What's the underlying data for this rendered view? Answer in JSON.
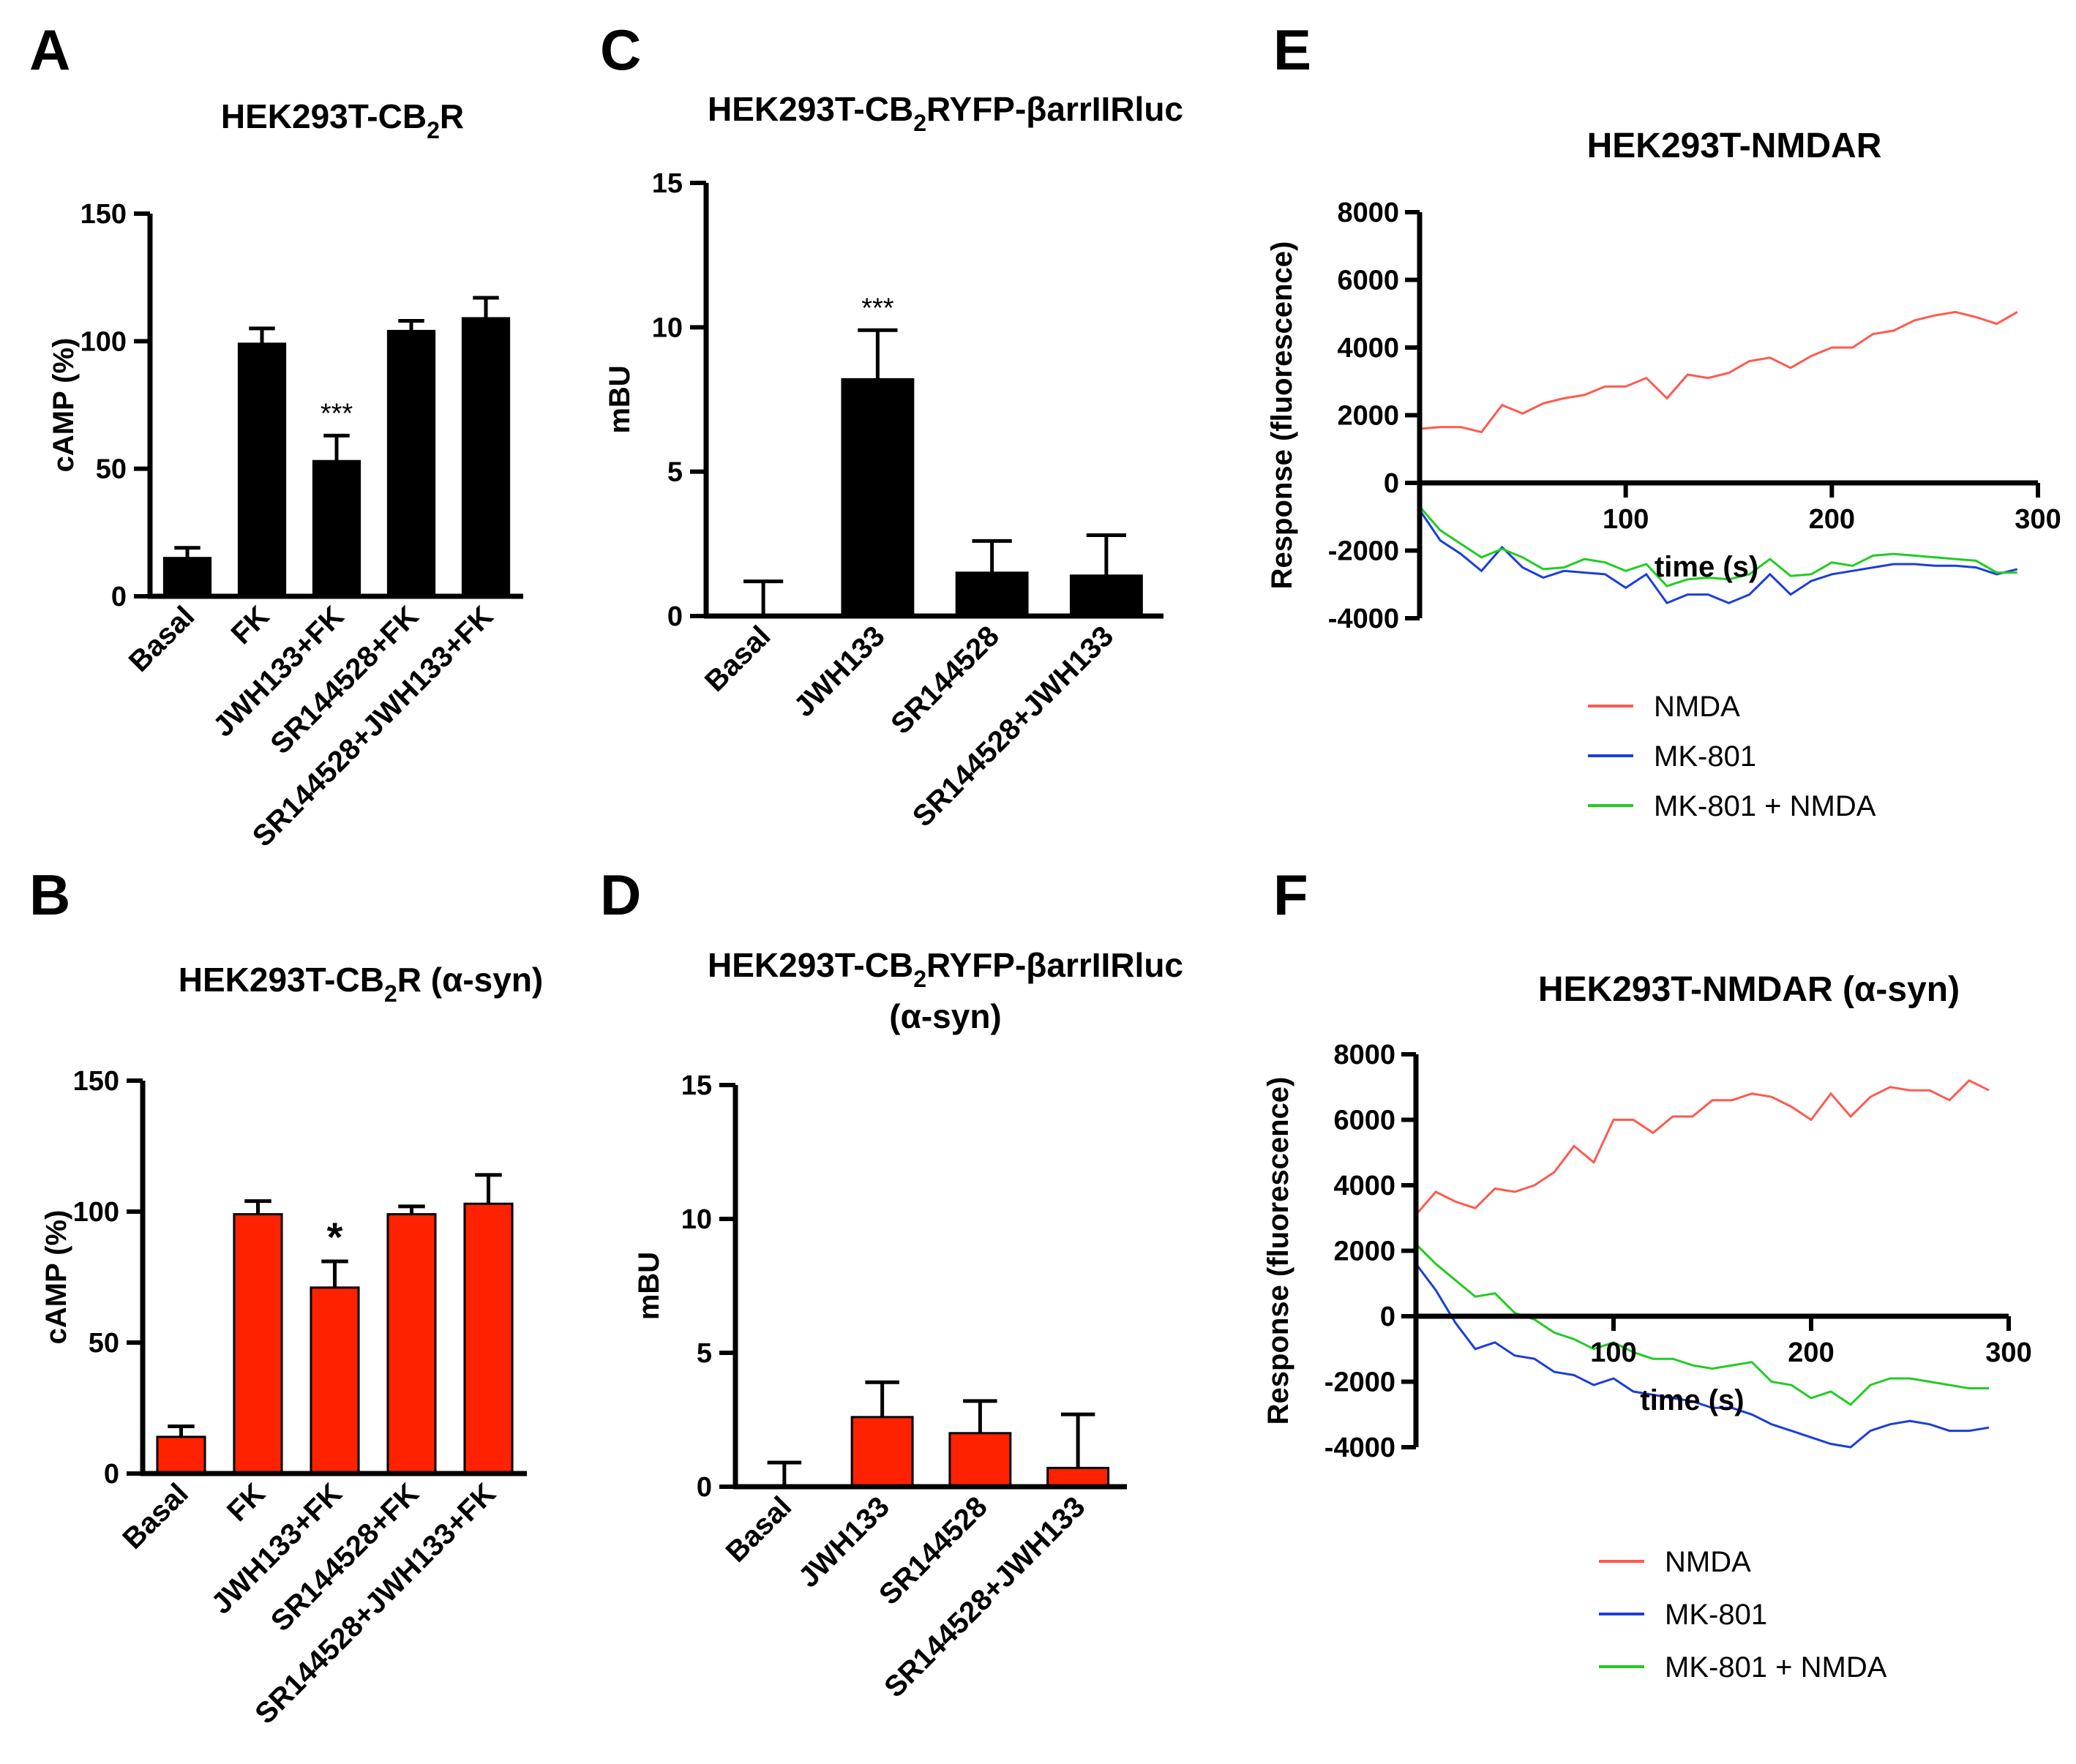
{
  "chart_data": [
    {
      "panel": "A",
      "type": "bar",
      "title": "HEK293T-CB2R",
      "title_parts": {
        "main": "HEK293T-CB",
        "sub": "2",
        "tail": "R"
      },
      "ylabel": "cAMP (%)",
      "ylim": [
        0,
        150
      ],
      "yticks": [
        "0",
        "50",
        "100",
        "150"
      ],
      "categories": [
        "Basal",
        "FK",
        "JWH133+FK",
        "SR144528+FK",
        "SR144528+JWH133+FK"
      ],
      "values": [
        15,
        99,
        53,
        104,
        109
      ],
      "errors": [
        4,
        6,
        10,
        4,
        8
      ],
      "significance": [
        "",
        "",
        "***",
        "",
        ""
      ],
      "color": "#000000"
    },
    {
      "panel": "B",
      "type": "bar",
      "title": "HEK293T-CB2R (α-syn)",
      "title_parts": {
        "main": "HEK293T-CB",
        "sub": "2",
        "tail": "R (α-syn)"
      },
      "ylabel": "cAMP (%)",
      "ylim": [
        0,
        150
      ],
      "yticks": [
        "0",
        "50",
        "100",
        "150"
      ],
      "categories": [
        "Basal",
        "FK",
        "JWH133+FK",
        "SR144528+FK",
        "SR144528+JWH133+FK"
      ],
      "values": [
        14,
        99,
        71,
        99,
        103
      ],
      "errors": [
        4,
        5,
        10,
        3,
        11
      ],
      "significance": [
        "",
        "",
        "*",
        "",
        ""
      ],
      "color": "#ff2200"
    },
    {
      "panel": "C",
      "type": "bar",
      "title": "HEK293T-CB2RYFP-βarrIIRluc",
      "title_parts": {
        "main": "HEK293T-CB",
        "sub": "2",
        "tail": "RYFP-βarrIIRluc"
      },
      "ylabel": "mBU",
      "ylim": [
        0,
        15
      ],
      "yticks": [
        "0",
        "5",
        "10",
        "15"
      ],
      "categories": [
        "Basal",
        "JWH133",
        "SR144528",
        "SR144528+JWH133"
      ],
      "values": [
        0,
        8.2,
        1.5,
        1.4
      ],
      "errors": [
        1.2,
        1.7,
        1.1,
        1.4
      ],
      "significance": [
        "",
        "***",
        "",
        ""
      ],
      "color": "#000000"
    },
    {
      "panel": "D",
      "type": "bar",
      "title": "HEK293T-CB2RYFP-βarrIIRluc (α-syn)",
      "title_parts": {
        "main": "HEK293T-CB",
        "sub": "2",
        "tail": "RYFP-βarrIIRluc",
        "line2": "(α-syn)"
      },
      "ylabel": "mBU",
      "ylim": [
        0,
        15
      ],
      "yticks": [
        "0",
        "5",
        "10",
        "15"
      ],
      "categories": [
        "Basal",
        "JWH133",
        "SR144528",
        "SR144528+JWH133"
      ],
      "values": [
        0,
        2.6,
        2.0,
        0.7
      ],
      "errors": [
        0.9,
        1.3,
        1.2,
        2.0
      ],
      "significance": [
        "",
        "",
        "",
        ""
      ],
      "color": "#ff2200"
    },
    {
      "panel": "E",
      "type": "line",
      "title": "HEK293T-NMDAR",
      "ylabel": "Response (fluorescence)",
      "xlabel": "time (s)",
      "xlim": [
        0,
        300
      ],
      "ylim": [
        -4000,
        8000
      ],
      "xticks": [
        "100",
        "200",
        "300"
      ],
      "yticks": [
        "-4000",
        "-2000",
        "0",
        "2000",
        "4000",
        "6000",
        "8000"
      ],
      "x": [
        0,
        10,
        20,
        30,
        40,
        50,
        60,
        70,
        80,
        90,
        100,
        110,
        120,
        130,
        140,
        150,
        160,
        170,
        180,
        190,
        200,
        210,
        220,
        230,
        240,
        250,
        260,
        270,
        280,
        290
      ],
      "series": [
        {
          "name": "NMDA",
          "color": "#ff5a4e",
          "values": [
            1600,
            1650,
            1650,
            1500,
            2300,
            2050,
            2350,
            2500,
            2600,
            2850,
            2850,
            3100,
            2500,
            3200,
            3100,
            3250,
            3600,
            3700,
            3400,
            3750,
            4000,
            4000,
            4400,
            4500,
            4800,
            4950,
            5050,
            4900,
            4700,
            5050
          ]
        },
        {
          "name": "MK-801",
          "color": "#1b3fd8",
          "values": [
            -800,
            -1700,
            -2100,
            -2600,
            -1900,
            -2500,
            -2800,
            -2600,
            -2650,
            -2700,
            -3100,
            -2700,
            -3550,
            -3300,
            -3300,
            -3550,
            -3300,
            -2700,
            -3300,
            -2900,
            -2700,
            -2600,
            -2500,
            -2400,
            -2400,
            -2450,
            -2450,
            -2500,
            -2700,
            -2550
          ]
        },
        {
          "name": "MK-801 + NMDA",
          "color": "#22cc22",
          "values": [
            -700,
            -1400,
            -1800,
            -2200,
            -1950,
            -2200,
            -2550,
            -2500,
            -2250,
            -2350,
            -2600,
            -2400,
            -3050,
            -2850,
            -2800,
            -2850,
            -2700,
            -2250,
            -2750,
            -2700,
            -2350,
            -2450,
            -2150,
            -2100,
            -2150,
            -2200,
            -2250,
            -2300,
            -2650,
            -2650
          ]
        }
      ]
    },
    {
      "panel": "F",
      "type": "line",
      "title": "HEK293T-NMDAR (α-syn)",
      "ylabel": "Response (fluorescence)",
      "xlabel": "time (s)",
      "xlim": [
        0,
        300
      ],
      "ylim": [
        -4000,
        8000
      ],
      "xticks": [
        "100",
        "200",
        "300"
      ],
      "yticks": [
        "-4000",
        "-2000",
        "0",
        "2000",
        "4000",
        "6000",
        "8000"
      ],
      "x": [
        0,
        10,
        20,
        30,
        40,
        50,
        60,
        70,
        80,
        90,
        100,
        110,
        120,
        130,
        140,
        150,
        160,
        170,
        180,
        190,
        200,
        210,
        220,
        230,
        240,
        250,
        260,
        270,
        280,
        290
      ],
      "series": [
        {
          "name": "NMDA",
          "color": "#ff5a4e",
          "values": [
            3100,
            3800,
            3500,
            3300,
            3900,
            3800,
            4000,
            4400,
            5200,
            4700,
            6000,
            6000,
            5600,
            6100,
            6100,
            6600,
            6600,
            6800,
            6700,
            6400,
            6000,
            6800,
            6100,
            6700,
            7000,
            6900,
            6900,
            6600,
            7200,
            6900
          ]
        },
        {
          "name": "MK-801",
          "color": "#1b3fd8",
          "values": [
            1600,
            800,
            -200,
            -1000,
            -800,
            -1200,
            -1300,
            -1700,
            -1800,
            -2100,
            -1900,
            -2300,
            -2400,
            -2500,
            -2600,
            -2800,
            -2800,
            -3000,
            -3300,
            -3500,
            -3700,
            -3900,
            -4000,
            -3500,
            -3300,
            -3200,
            -3300,
            -3500,
            -3500,
            -3400
          ]
        },
        {
          "name": "MK-801 + NMDA",
          "color": "#22cc22",
          "values": [
            2200,
            1600,
            1100,
            600,
            700,
            100,
            -100,
            -500,
            -700,
            -1000,
            -800,
            -1100,
            -1300,
            -1300,
            -1500,
            -1600,
            -1500,
            -1400,
            -2000,
            -2100,
            -2500,
            -2300,
            -2700,
            -2100,
            -1900,
            -1900,
            -2000,
            -2100,
            -2200,
            -2200
          ]
        }
      ]
    }
  ]
}
